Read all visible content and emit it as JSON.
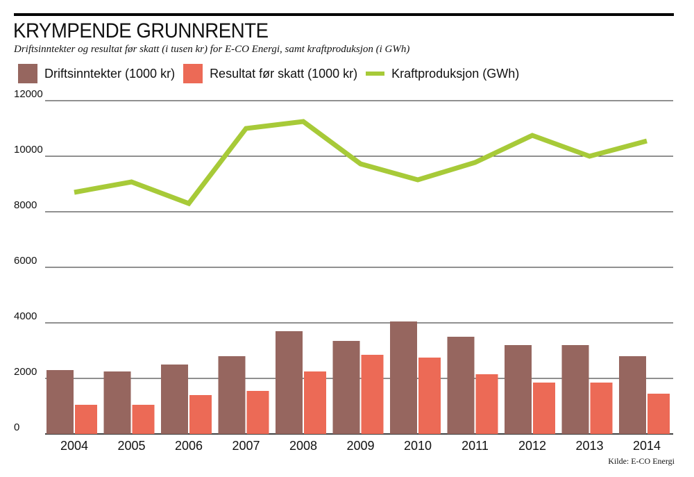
{
  "title": "KRYMPENDE GRUNNRENTE",
  "subtitle": "Driftsinntekter og resultat før skatt (i tusen kr) for E-CO Energi, samt kraftproduksjon (i GWh)",
  "source": "Kilde: E-CO Energi",
  "chart_data": {
    "type": "bar",
    "categories": [
      "2004",
      "2005",
      "2006",
      "2007",
      "2008",
      "2009",
      "2010",
      "2011",
      "2012",
      "2013",
      "2014"
    ],
    "series": [
      {
        "name": "Driftsinntekter (1000 kr)",
        "type": "bar",
        "color": "#96665f",
        "values": [
          2300,
          2250,
          2500,
          2800,
          3700,
          3350,
          4050,
          3500,
          3200,
          3200,
          2800
        ]
      },
      {
        "name": "Resultat før skatt (1000 kr)",
        "type": "bar",
        "color": "#ec6a56",
        "values": [
          1050,
          1050,
          1400,
          1550,
          2250,
          2850,
          2750,
          2150,
          1850,
          1850,
          1450
        ]
      },
      {
        "name": "Kraftproduksjon (GWh)",
        "type": "line",
        "color": "#a7ca38",
        "values": [
          8700,
          9075,
          8300,
          11000,
          11250,
          9725,
          9150,
          9775,
          10750,
          10000,
          10550
        ]
      }
    ],
    "yticks": [
      "0",
      "2000",
      "4000",
      "6000",
      "8000",
      "10000",
      "12000"
    ],
    "ylim": [
      0,
      12000
    ],
    "grid": true,
    "legend": "top"
  }
}
